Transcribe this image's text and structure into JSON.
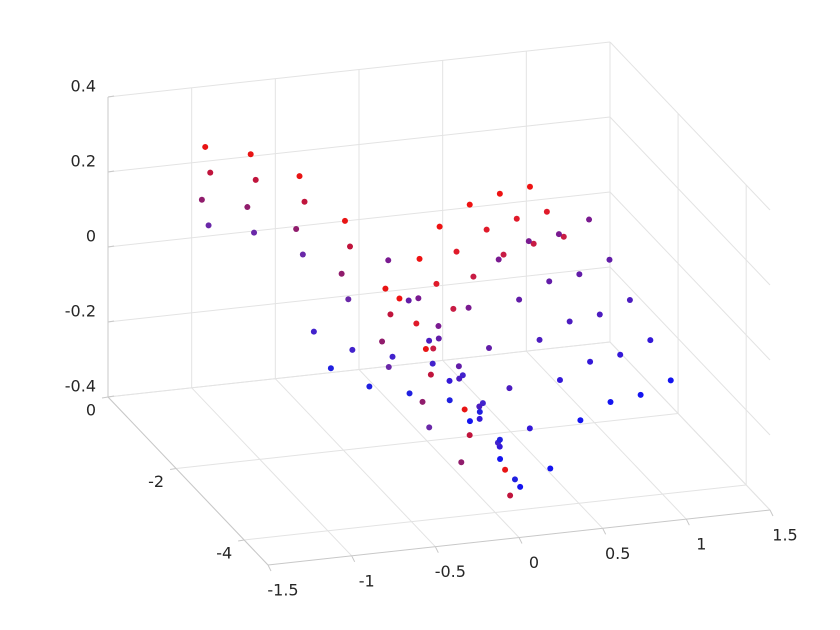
{
  "chart_data": {
    "type": "scatter3d",
    "xlim": [
      -1.5,
      1.5
    ],
    "ylim": [
      -4.7,
      0
    ],
    "zlim": [
      -0.4,
      0.4
    ],
    "xticks": [
      -1.5,
      -1,
      -0.5,
      0,
      0.5,
      1,
      1.5
    ],
    "yticks": [
      -4,
      -2,
      0
    ],
    "zticks": [
      -0.4,
      -0.2,
      0,
      0.2,
      0.4
    ],
    "grid": true,
    "series": [
      {
        "color": "#e81414",
        "x": [
          -0.98,
          -0.81,
          -0.62,
          -0.45,
          -0.31,
          -0.17,
          -0.04,
          0.1
        ],
        "y": [
          -0.3,
          -0.8,
          -1.3,
          -1.8,
          -2.3,
          -2.8,
          -3.3,
          -3.8
        ],
        "z": [
          0.27,
          0.29,
          0.27,
          0.19,
          0.05,
          -0.07,
          -0.19,
          -0.31
        ]
      },
      {
        "color": "#c0143c",
        "x": [
          -0.95,
          -0.78,
          -0.59,
          -0.42,
          -0.28,
          -0.14,
          -0.01,
          0.13
        ],
        "y": [
          -0.3,
          -0.8,
          -1.3,
          -1.8,
          -2.3,
          -2.8,
          -3.3,
          -3.8
        ],
        "z": [
          0.2,
          0.22,
          0.2,
          0.12,
          -0.02,
          -0.14,
          -0.26,
          -0.38
        ]
      },
      {
        "color": "#901c6c",
        "x": [
          -1.0,
          -0.83,
          -0.64,
          -0.47,
          -0.33,
          -0.19,
          -0.06
        ],
        "y": [
          -0.3,
          -0.8,
          -1.3,
          -1.8,
          -2.3,
          -2.8,
          -3.3
        ],
        "z": [
          0.13,
          0.15,
          0.13,
          0.05,
          -0.09,
          -0.21,
          -0.33
        ]
      },
      {
        "color": "#6a28a8",
        "x": [
          -0.96,
          -0.79,
          -0.6,
          -0.43,
          -0.29,
          -0.15
        ],
        "y": [
          -0.3,
          -0.8,
          -1.3,
          -1.8,
          -2.3,
          -2.8
        ],
        "z": [
          0.06,
          0.08,
          0.06,
          -0.02,
          -0.16,
          -0.28
        ]
      },
      {
        "color": "#ee1212",
        "x": [
          0.14,
          0.26,
          0.38,
          0.56,
          0.74,
          0.92
        ],
        "y": [
          -0.5,
          -0.5,
          -0.5,
          -0.5,
          -0.5,
          -0.5
        ],
        "z": [
          -0.17,
          -0.07,
          0.01,
          0.06,
          0.08,
          0.09
        ]
      },
      {
        "color": "#e01a2a",
        "x": [
          0.18,
          0.3,
          0.42,
          0.6,
          0.78,
          0.96
        ],
        "y": [
          -0.8,
          -0.8,
          -0.8,
          -0.8,
          -0.8,
          -0.8
        ],
        "z": [
          -0.21,
          -0.11,
          -0.03,
          0.02,
          0.04,
          0.05
        ]
      },
      {
        "color": "#c81c44",
        "x": [
          0.22,
          0.34,
          0.46,
          0.64,
          0.82,
          1.0
        ],
        "y": [
          -1.1,
          -1.1,
          -1.1,
          -1.1,
          -1.1,
          -1.1
        ],
        "z": [
          -0.25,
          -0.15,
          -0.07,
          -0.02,
          0.0,
          0.01
        ]
      },
      {
        "color": "#7a1a90",
        "x": [
          -0.11,
          0.07,
          0.19,
          0.37,
          0.55,
          0.73,
          0.91,
          1.09
        ],
        "y": [
          -1.4,
          -1.4,
          -1.4,
          -1.4,
          -1.4,
          -1.4,
          -1.4,
          -1.4
        ],
        "z": [
          0.03,
          -0.08,
          -0.16,
          -0.12,
          0.0,
          0.04,
          0.05,
          0.08
        ]
      },
      {
        "color": "#621ca8",
        "x": [
          -0.11,
          0.07,
          0.19,
          0.37,
          0.55,
          0.73,
          0.91,
          1.09
        ],
        "y": [
          -2.0,
          -2.0,
          -2.0,
          -2.0,
          -2.0,
          -2.0,
          -2.0,
          -2.0
        ],
        "z": [
          -0.02,
          -0.13,
          -0.21,
          -0.17,
          -0.05,
          -0.01,
          0.0,
          0.03
        ]
      },
      {
        "color": "#4c1cc0",
        "x": [
          -0.11,
          0.07,
          0.19,
          0.37,
          0.55,
          0.73,
          0.91,
          1.09
        ],
        "y": [
          -2.6,
          -2.6,
          -2.6,
          -2.6,
          -2.6,
          -2.6,
          -2.6,
          -2.6
        ],
        "z": [
          -0.07,
          -0.18,
          -0.26,
          -0.22,
          -0.1,
          -0.06,
          -0.05,
          -0.02
        ]
      },
      {
        "color": "#3418d8",
        "x": [
          -0.11,
          0.07,
          0.19,
          0.37,
          0.55,
          0.73,
          0.91,
          1.09
        ],
        "y": [
          -3.2,
          -3.2,
          -3.2,
          -3.2,
          -3.2,
          -3.2,
          -3.2,
          -3.2
        ],
        "z": [
          -0.12,
          -0.23,
          -0.31,
          -0.27,
          -0.15,
          -0.11,
          -0.1,
          -0.07
        ]
      },
      {
        "color": "#1414f0",
        "x": [
          -0.11,
          0.07,
          0.19,
          0.37,
          0.55,
          0.73,
          0.91,
          1.09
        ],
        "y": [
          -3.8,
          -3.8,
          -3.8,
          -3.8,
          -3.8,
          -3.8,
          -3.8,
          -3.8
        ],
        "z": [
          -0.17,
          -0.28,
          -0.36,
          -0.32,
          -0.2,
          -0.16,
          -0.15,
          -0.12
        ]
      },
      {
        "color": "#4222cc",
        "x": [
          -0.88,
          -0.65,
          -0.41,
          -0.17,
          0.01,
          0.13,
          0.22
        ],
        "y": [
          -3.0,
          -3.0,
          -3.0,
          -3.0,
          -3.0,
          -3.0,
          -3.0
        ],
        "z": [
          0.03,
          -0.03,
          -0.06,
          -0.09,
          -0.13,
          -0.21,
          -0.32
        ]
      },
      {
        "color": "#2020e0",
        "x": [
          -0.88,
          -0.65,
          -0.41,
          -0.17,
          0.01,
          0.13,
          0.22
        ],
        "y": [
          -3.5,
          -3.5,
          -3.5,
          -3.5,
          -3.5,
          -3.5,
          -3.5
        ],
        "z": [
          -0.02,
          -0.08,
          -0.11,
          -0.14,
          -0.18,
          -0.26,
          -0.37
        ]
      }
    ]
  }
}
